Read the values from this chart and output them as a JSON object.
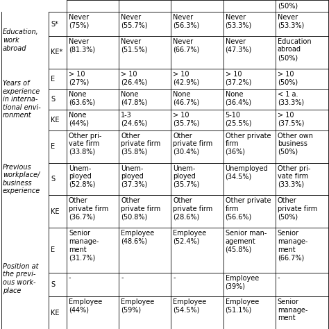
{
  "rows": [
    {
      "sub": "S*",
      "cells": [
        "Never\n(75%)",
        "Never\n(55.7%)",
        "Never\n(56.3%)",
        "Never\n(53.3%)",
        "Never\n(53.3%)"
      ]
    },
    {
      "sub": "KE*",
      "cells": [
        "Never\n(81.3%)",
        "Never\n(51.5%)",
        "Never\n(66.7%)",
        "Never\n(47.3%)",
        "Education\nabroad\n(50%)"
      ]
    },
    {
      "sub": "E",
      "cells": [
        "> 10\n(27%)",
        "> 10\n(26.4%)",
        "> 10\n(42.9%)",
        "> 10\n(37.2%)",
        "> 10\n(50%)"
      ]
    },
    {
      "sub": "S",
      "cells": [
        "None\n(63.6%)",
        "None\n(47.8%)",
        "None\n(46.7%)",
        "None\n(36.4%)",
        "< 1 a.\n(33.3%)"
      ]
    },
    {
      "sub": "KE",
      "cells": [
        "None\n(44%)",
        "1-3\n(24.6%)",
        "> 10\n(35.7%)",
        "5-10\n(25.5%)",
        "> 10\n(37.5%)"
      ]
    },
    {
      "sub": "E",
      "cells": [
        "Other pri-\nvate firm\n(33.8%)",
        "Other\nprivate firm\n(35.8%)",
        "Other\nprivate firm\n(30.4%)",
        "Other private\nfirm\n(36%)",
        "Other own\nbusiness\n(50%)"
      ]
    },
    {
      "sub": "S",
      "cells": [
        "Unem-\nployed\n(52.8%)",
        "Unem-\nployed\n(37.3%)",
        "Unem-\nployed\n(35.7%)",
        "Unemployed\n(34.5%)",
        "Other pri-\nvate firm\n(33.3%)"
      ]
    },
    {
      "sub": "KE",
      "cells": [
        "Other\nprivate firm\n(36.7%)",
        "Other\nprivate firm\n(50.8%)",
        "Other\nprivate firm\n(28.6%)",
        "Other private\nfirm\n(56.6%)",
        "Other\nprivate firm\n(50%)"
      ]
    },
    {
      "sub": "E",
      "cells": [
        "Senior\nmanage-\nment\n(31.7%)",
        "Employee\n(48.6%)",
        "Employee\n(52.4%)",
        "Senior man-\nagement\n(45.8%)",
        "Senior\nmanage-\nment\n(66.7%)"
      ]
    },
    {
      "sub": "S",
      "cells": [
        "-",
        "-",
        "-",
        "Employee\n(39%)",
        "-"
      ]
    },
    {
      "sub": "KE",
      "cells": [
        "Employee\n(44%)",
        "Employee\n(59%)",
        "Employee\n(54.5%)",
        "Employee\n(51.1%)",
        "Senior\nmanage-\nment"
      ]
    }
  ],
  "sections": [
    {
      "text": "Education,\nwork\nabroad",
      "rows": [
        0,
        1
      ]
    },
    {
      "text": "Years of\nexperience\nin interna-\ntional envi-\nronment",
      "rows": [
        2,
        3,
        4
      ]
    },
    {
      "text": "Previous\nworkplace/\nbusiness\nexperience",
      "rows": [
        5,
        6,
        7
      ]
    },
    {
      "text": "Position at\nthe previ-\nous work-\nplace",
      "rows": [
        8,
        9,
        10
      ]
    }
  ],
  "top_cell": "(50%)",
  "background": "#ffffff",
  "line_color": "#000000",
  "fontsize": 7.0,
  "section_fontsize": 7.0
}
